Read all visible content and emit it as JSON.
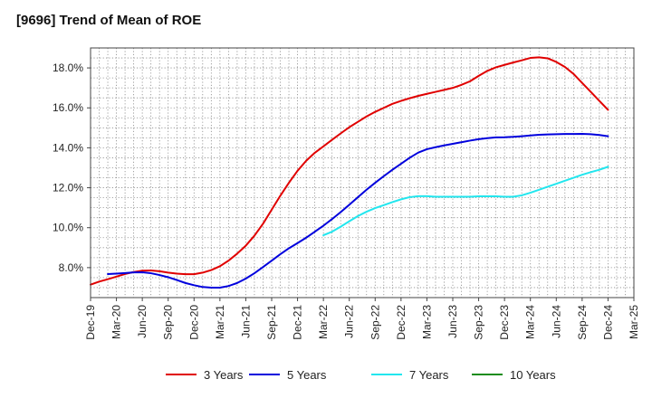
{
  "chart_data": {
    "type": "line",
    "title": "[9696]  Trend of Mean of ROE",
    "xlabel": "",
    "ylabel": "",
    "ylim": [
      6.5,
      19.0
    ],
    "grid": true,
    "legend_position": "bottom",
    "x_tick_labels": [
      "Dec-19",
      "Mar-20",
      "Jun-20",
      "Sep-20",
      "Dec-20",
      "Mar-21",
      "Jun-21",
      "Sep-21",
      "Dec-21",
      "Mar-22",
      "Jun-22",
      "Sep-22",
      "Dec-22",
      "Mar-23",
      "Jun-23",
      "Sep-23",
      "Dec-23",
      "Mar-24",
      "Jun-24",
      "Sep-24",
      "Dec-24",
      "Mar-25"
    ],
    "y_ticks": [
      8.0,
      10.0,
      12.0,
      14.0,
      16.0,
      18.0
    ],
    "y_tick_labels": [
      "8.0%",
      "10.0%",
      "12.0%",
      "14.0%",
      "16.0%",
      "18.0%"
    ],
    "series": [
      {
        "name": "3 Years",
        "color": "#e00000",
        "points": [
          [
            "Dec-19",
            7.15
          ],
          [
            "Jan-20",
            7.3
          ],
          [
            "Feb-20",
            7.42
          ],
          [
            "Mar-20",
            7.55
          ],
          [
            "Apr-20",
            7.68
          ],
          [
            "May-20",
            7.78
          ],
          [
            "Jun-20",
            7.85
          ],
          [
            "Jul-20",
            7.86
          ],
          [
            "Aug-20",
            7.82
          ],
          [
            "Sep-20",
            7.75
          ],
          [
            "Oct-20",
            7.7
          ],
          [
            "Nov-20",
            7.67
          ],
          [
            "Dec-20",
            7.67
          ],
          [
            "Jan-21",
            7.75
          ],
          [
            "Feb-21",
            7.88
          ],
          [
            "Mar-21",
            8.07
          ],
          [
            "Apr-21",
            8.35
          ],
          [
            "May-21",
            8.7
          ],
          [
            "Jun-21",
            9.1
          ],
          [
            "Jul-21",
            9.6
          ],
          [
            "Aug-21",
            10.2
          ],
          [
            "Sep-21",
            10.9
          ],
          [
            "Oct-21",
            11.6
          ],
          [
            "Nov-21",
            12.25
          ],
          [
            "Dec-21",
            12.85
          ],
          [
            "Jan-22",
            13.35
          ],
          [
            "Feb-22",
            13.75
          ],
          [
            "Mar-22",
            14.07
          ],
          [
            "Apr-22",
            14.4
          ],
          [
            "May-22",
            14.72
          ],
          [
            "Jun-22",
            15.03
          ],
          [
            "Jul-22",
            15.3
          ],
          [
            "Aug-22",
            15.57
          ],
          [
            "Sep-22",
            15.8
          ],
          [
            "Oct-22",
            16.0
          ],
          [
            "Nov-22",
            16.2
          ],
          [
            "Dec-22",
            16.35
          ],
          [
            "Jan-23",
            16.48
          ],
          [
            "Feb-23",
            16.6
          ],
          [
            "Mar-23",
            16.7
          ],
          [
            "Apr-23",
            16.8
          ],
          [
            "May-23",
            16.9
          ],
          [
            "Jun-23",
            17.0
          ],
          [
            "Jul-23",
            17.15
          ],
          [
            "Aug-23",
            17.33
          ],
          [
            "Sep-23",
            17.6
          ],
          [
            "Oct-23",
            17.85
          ],
          [
            "Nov-23",
            18.03
          ],
          [
            "Dec-23",
            18.15
          ],
          [
            "Jan-24",
            18.27
          ],
          [
            "Feb-24",
            18.38
          ],
          [
            "Mar-24",
            18.5
          ],
          [
            "Apr-24",
            18.53
          ],
          [
            "May-24",
            18.48
          ],
          [
            "Jun-24",
            18.3
          ],
          [
            "Jul-24",
            18.05
          ],
          [
            "Aug-24",
            17.7
          ],
          [
            "Sep-24",
            17.25
          ],
          [
            "Oct-24",
            16.8
          ],
          [
            "Nov-24",
            16.35
          ],
          [
            "Dec-24",
            15.9
          ]
        ]
      },
      {
        "name": "5 Years",
        "color": "#0000dd",
        "points": [
          [
            "Feb-20",
            7.68
          ],
          [
            "Mar-20",
            7.7
          ],
          [
            "Apr-20",
            7.73
          ],
          [
            "May-20",
            7.76
          ],
          [
            "Jun-20",
            7.77
          ],
          [
            "Jul-20",
            7.72
          ],
          [
            "Aug-20",
            7.63
          ],
          [
            "Sep-20",
            7.52
          ],
          [
            "Oct-20",
            7.38
          ],
          [
            "Nov-20",
            7.23
          ],
          [
            "Dec-20",
            7.12
          ],
          [
            "Jan-21",
            7.03
          ],
          [
            "Feb-21",
            7.0
          ],
          [
            "Mar-21",
            7.0
          ],
          [
            "Apr-21",
            7.08
          ],
          [
            "May-21",
            7.23
          ],
          [
            "Jun-21",
            7.45
          ],
          [
            "Jul-21",
            7.72
          ],
          [
            "Aug-21",
            8.03
          ],
          [
            "Sep-21",
            8.35
          ],
          [
            "Oct-21",
            8.67
          ],
          [
            "Nov-21",
            8.97
          ],
          [
            "Dec-21",
            9.23
          ],
          [
            "Jan-22",
            9.5
          ],
          [
            "Feb-22",
            9.8
          ],
          [
            "Mar-22",
            10.1
          ],
          [
            "Apr-22",
            10.43
          ],
          [
            "May-22",
            10.78
          ],
          [
            "Jun-22",
            11.15
          ],
          [
            "Jul-22",
            11.53
          ],
          [
            "Aug-22",
            11.9
          ],
          [
            "Sep-22",
            12.25
          ],
          [
            "Oct-22",
            12.58
          ],
          [
            "Nov-22",
            12.9
          ],
          [
            "Dec-22",
            13.2
          ],
          [
            "Jan-23",
            13.5
          ],
          [
            "Feb-23",
            13.76
          ],
          [
            "Mar-23",
            13.93
          ],
          [
            "Apr-23",
            14.03
          ],
          [
            "May-23",
            14.12
          ],
          [
            "Jun-23",
            14.2
          ],
          [
            "Jul-23",
            14.28
          ],
          [
            "Aug-23",
            14.36
          ],
          [
            "Sep-23",
            14.43
          ],
          [
            "Oct-23",
            14.48
          ],
          [
            "Nov-23",
            14.52
          ],
          [
            "Dec-23",
            14.53
          ],
          [
            "Jan-24",
            14.55
          ],
          [
            "Feb-24",
            14.58
          ],
          [
            "Mar-24",
            14.62
          ],
          [
            "Apr-24",
            14.65
          ],
          [
            "May-24",
            14.67
          ],
          [
            "Jun-24",
            14.68
          ],
          [
            "Jul-24",
            14.69
          ],
          [
            "Aug-24",
            14.69
          ],
          [
            "Sep-24",
            14.7
          ],
          [
            "Oct-24",
            14.68
          ],
          [
            "Nov-24",
            14.64
          ],
          [
            "Dec-24",
            14.58
          ]
        ]
      },
      {
        "name": "7 Years",
        "color": "#22e6ee",
        "points": [
          [
            "Mar-22",
            9.62
          ],
          [
            "Apr-22",
            9.8
          ],
          [
            "May-22",
            10.05
          ],
          [
            "Jun-22",
            10.32
          ],
          [
            "Jul-22",
            10.58
          ],
          [
            "Aug-22",
            10.8
          ],
          [
            "Sep-22",
            10.98
          ],
          [
            "Oct-22",
            11.13
          ],
          [
            "Nov-22",
            11.28
          ],
          [
            "Dec-22",
            11.42
          ],
          [
            "Jan-23",
            11.53
          ],
          [
            "Feb-23",
            11.58
          ],
          [
            "Mar-23",
            11.58
          ],
          [
            "Apr-23",
            11.55
          ],
          [
            "May-23",
            11.55
          ],
          [
            "Jun-23",
            11.55
          ],
          [
            "Jul-23",
            11.55
          ],
          [
            "Aug-23",
            11.55
          ],
          [
            "Sep-23",
            11.57
          ],
          [
            "Oct-23",
            11.57
          ],
          [
            "Nov-23",
            11.57
          ],
          [
            "Dec-23",
            11.55
          ],
          [
            "Jan-24",
            11.55
          ],
          [
            "Feb-24",
            11.62
          ],
          [
            "Mar-24",
            11.75
          ],
          [
            "Apr-24",
            11.9
          ],
          [
            "May-24",
            12.05
          ],
          [
            "Jun-24",
            12.2
          ],
          [
            "Jul-24",
            12.35
          ],
          [
            "Aug-24",
            12.5
          ],
          [
            "Sep-24",
            12.65
          ],
          [
            "Oct-24",
            12.78
          ],
          [
            "Nov-24",
            12.9
          ],
          [
            "Dec-24",
            13.05
          ]
        ]
      },
      {
        "name": "10 Years",
        "color": "#1a8c1a",
        "points": []
      }
    ]
  }
}
